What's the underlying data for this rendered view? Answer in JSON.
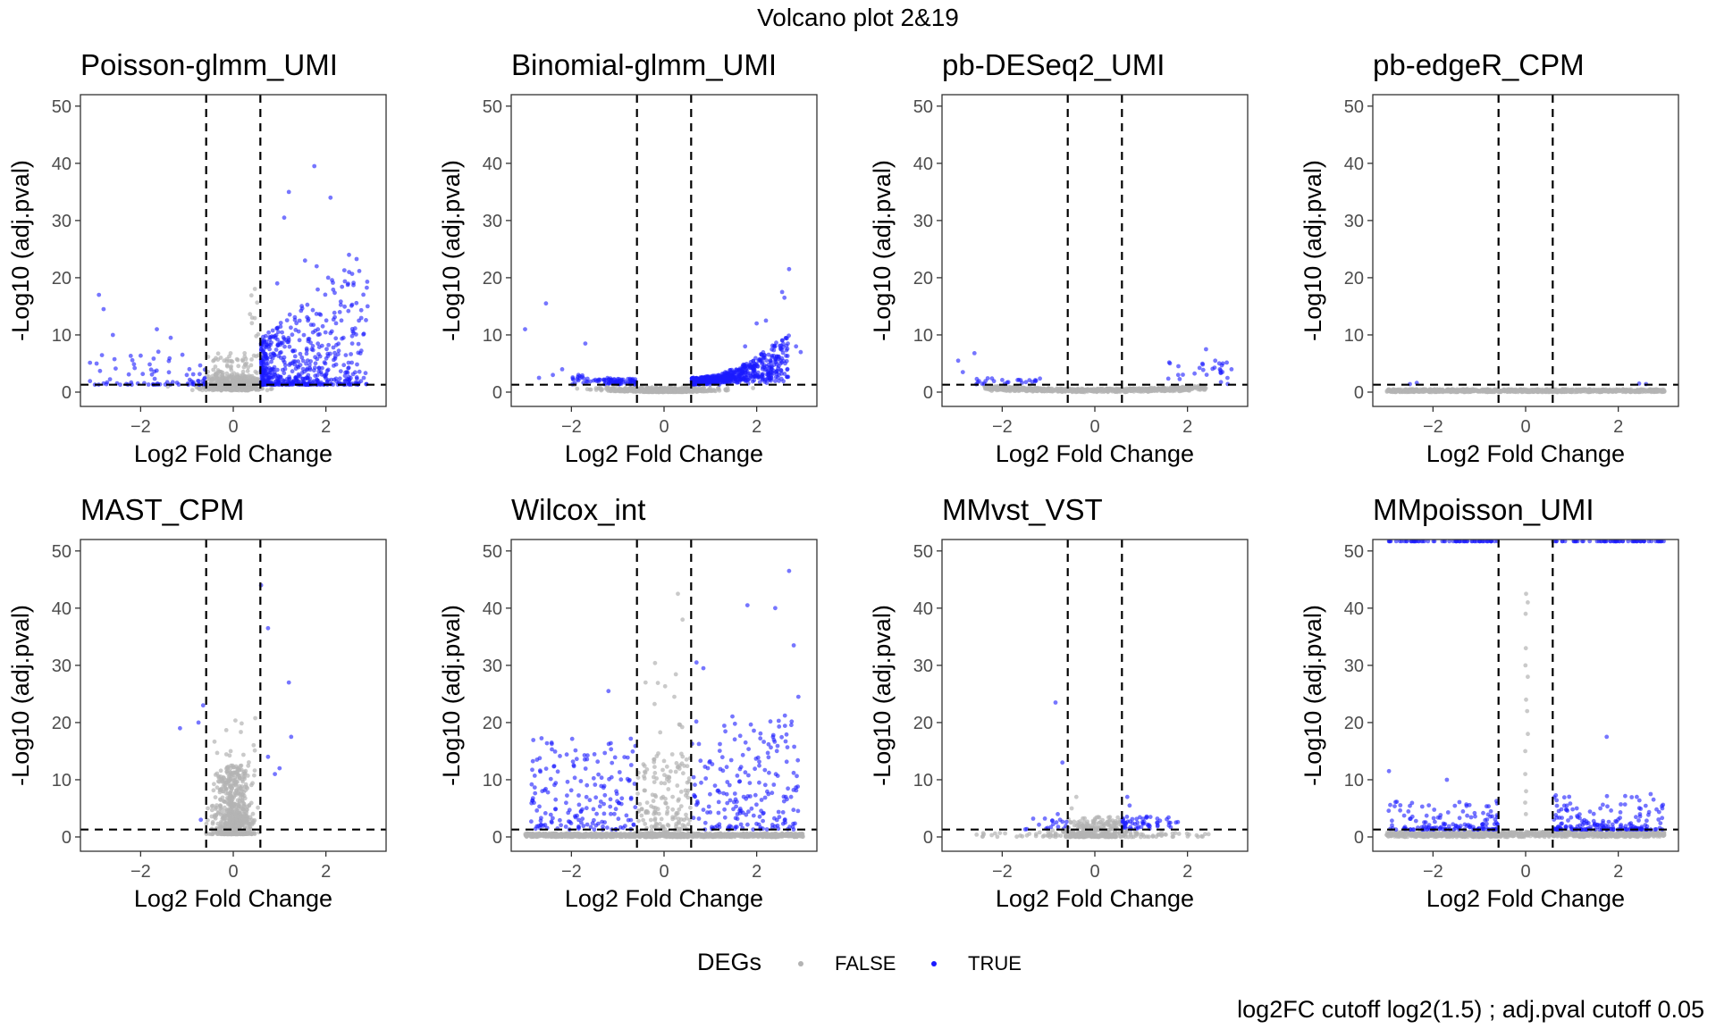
{
  "title": "Volcano plot 2&19",
  "footnote": "log2FC cutoff  log2(1.5) ; adj.pval cutoff 0.05",
  "legend": {
    "title": "DEGs",
    "items": [
      {
        "label": "FALSE",
        "color": "#b3b3b3"
      },
      {
        "label": "TRUE",
        "color": "#1a1aff"
      }
    ]
  },
  "chart_data": [
    {
      "type": "scatter",
      "title": "Poisson-glmm_UMI",
      "xlabel": "Log2 Fold Change",
      "ylabel": "-Log10 (adj.pval)",
      "xlim": [
        -3.3,
        3.3
      ],
      "ylim": [
        -2.5,
        52
      ],
      "xticks": [
        -2,
        0,
        2
      ],
      "yticks": [
        0,
        10,
        20,
        30,
        40,
        50
      ],
      "vlines": [
        -0.585,
        0.585
      ],
      "hline": 1.3,
      "profile": "poisson"
    },
    {
      "type": "scatter",
      "title": "Binomial-glmm_UMI",
      "xlabel": "Log2 Fold Change",
      "ylabel": "-Log10 (adj.pval)",
      "xlim": [
        -3.3,
        3.3
      ],
      "ylim": [
        -2.5,
        52
      ],
      "xticks": [
        -2,
        0,
        2
      ],
      "yticks": [
        0,
        10,
        20,
        30,
        40,
        50
      ],
      "vlines": [
        -0.585,
        0.585
      ],
      "hline": 1.3,
      "profile": "binomial"
    },
    {
      "type": "scatter",
      "title": "pb-DESeq2_UMI",
      "xlabel": "Log2 Fold Change",
      "ylabel": "-Log10 (adj.pval)",
      "xlim": [
        -3.3,
        3.3
      ],
      "ylim": [
        -2.5,
        52
      ],
      "xticks": [
        -2,
        0,
        2
      ],
      "yticks": [
        0,
        10,
        20,
        30,
        40,
        50
      ],
      "vlines": [
        -0.585,
        0.585
      ],
      "hline": 1.3,
      "profile": "deseq"
    },
    {
      "type": "scatter",
      "title": "pb-edgeR_CPM",
      "xlabel": "Log2 Fold Change",
      "ylabel": "-Log10 (adj.pval)",
      "xlim": [
        -3.3,
        3.3
      ],
      "ylim": [
        -2.5,
        52
      ],
      "xticks": [
        -2,
        0,
        2
      ],
      "yticks": [
        0,
        10,
        20,
        30,
        40,
        50
      ],
      "vlines": [
        -0.585,
        0.585
      ],
      "hline": 1.3,
      "profile": "edger"
    },
    {
      "type": "scatter",
      "title": "MAST_CPM",
      "xlabel": "Log2 Fold Change",
      "ylabel": "-Log10 (adj.pval)",
      "xlim": [
        -3.3,
        3.3
      ],
      "ylim": [
        -2.5,
        52
      ],
      "xticks": [
        -2,
        0,
        2
      ],
      "yticks": [
        0,
        10,
        20,
        30,
        40,
        50
      ],
      "vlines": [
        -0.585,
        0.585
      ],
      "hline": 1.3,
      "profile": "mast"
    },
    {
      "type": "scatter",
      "title": "Wilcox_int",
      "xlabel": "Log2 Fold Change",
      "ylabel": "-Log10 (adj.pval)",
      "xlim": [
        -3.3,
        3.3
      ],
      "ylim": [
        -2.5,
        52
      ],
      "xticks": [
        -2,
        0,
        2
      ],
      "yticks": [
        0,
        10,
        20,
        30,
        40,
        50
      ],
      "vlines": [
        -0.585,
        0.585
      ],
      "hline": 1.3,
      "profile": "wilcox"
    },
    {
      "type": "scatter",
      "title": "MMvst_VST",
      "xlabel": "Log2 Fold Change",
      "ylabel": "-Log10 (adj.pval)",
      "xlim": [
        -3.3,
        3.3
      ],
      "ylim": [
        -2.5,
        52
      ],
      "xticks": [
        -2,
        0,
        2
      ],
      "yticks": [
        0,
        10,
        20,
        30,
        40,
        50
      ],
      "vlines": [
        -0.585,
        0.585
      ],
      "hline": 1.3,
      "profile": "mmvst"
    },
    {
      "type": "scatter",
      "title": "MMpoisson_UMI",
      "xlabel": "Log2 Fold Change",
      "ylabel": "-Log10 (adj.pval)",
      "xlim": [
        -3.3,
        3.3
      ],
      "ylim": [
        -2.5,
        52
      ],
      "xticks": [
        -2,
        0,
        2
      ],
      "yticks": [
        0,
        10,
        20,
        30,
        40,
        50
      ],
      "vlines": [
        -0.585,
        0.585
      ],
      "hline": 1.3,
      "profile": "mmpoisson"
    }
  ]
}
